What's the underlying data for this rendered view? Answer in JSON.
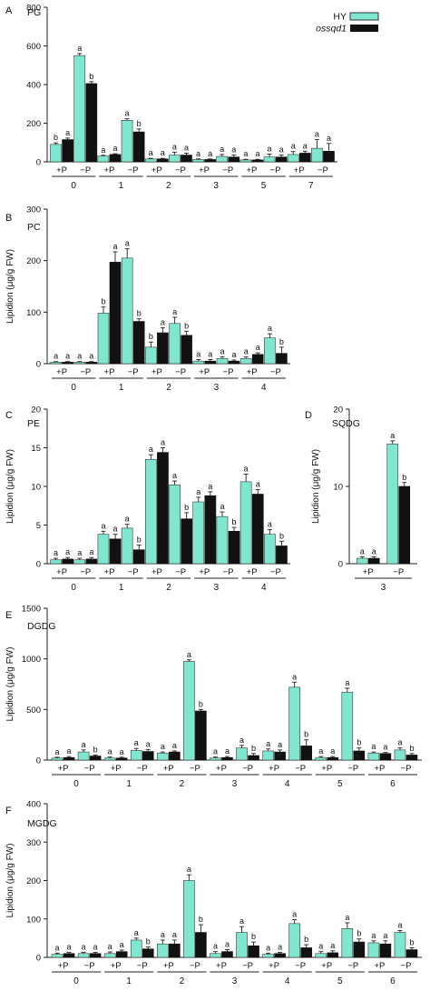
{
  "legend": {
    "hy_label": "HY",
    "mutant_label": "ossqd1",
    "hy_color": "#7fe6d0",
    "mutant_color": "#111111"
  },
  "chart_data": [
    {
      "panel": "A",
      "title": "PG",
      "type": "bar",
      "ylabel": "",
      "ylim": [
        0,
        800
      ],
      "yticks": [
        0,
        200,
        400,
        600,
        800
      ],
      "categories": [
        "+P",
        "−P",
        "+P",
        "−P",
        "+P",
        "−P",
        "+P",
        "−P",
        "+P",
        "−P",
        "+P",
        "−P"
      ],
      "groups": [
        "0",
        "1",
        "2",
        "3",
        "5",
        "7"
      ],
      "series": [
        {
          "name": "HY",
          "values": [
            90,
            550,
            30,
            215,
            15,
            35,
            12,
            28,
            10,
            25,
            38,
            70
          ],
          "errors": [
            8,
            10,
            4,
            8,
            3,
            15,
            3,
            10,
            3,
            15,
            15,
            45
          ],
          "letters": [
            "b",
            "a",
            "a",
            "a",
            "a",
            "a",
            "a",
            "a",
            "a",
            "a",
            "a",
            "a"
          ]
        },
        {
          "name": "ossqd1",
          "values": [
            115,
            405,
            38,
            155,
            15,
            35,
            12,
            25,
            10,
            25,
            45,
            55
          ],
          "errors": [
            8,
            10,
            4,
            15,
            3,
            10,
            3,
            10,
            3,
            10,
            10,
            40
          ],
          "letters": [
            "a",
            "b",
            "a",
            "b",
            "a",
            "a",
            "a",
            "a",
            "a",
            "a",
            "a",
            "a"
          ]
        }
      ]
    },
    {
      "panel": "B",
      "title": "PC",
      "type": "bar",
      "ylabel": "Lipidion (μg/g FW)",
      "ylim": [
        0,
        300
      ],
      "yticks": [
        0,
        100,
        200,
        300
      ],
      "categories": [
        "+P",
        "−P",
        "+P",
        "−P",
        "+P",
        "−P",
        "+P",
        "−P",
        "+P",
        "−P"
      ],
      "groups": [
        "0",
        "1",
        "2",
        "3",
        "4"
      ],
      "series": [
        {
          "name": "HY",
          "values": [
            3,
            3,
            98,
            205,
            32,
            78,
            5,
            10,
            10,
            50
          ],
          "errors": [
            1,
            1,
            12,
            18,
            10,
            12,
            3,
            3,
            3,
            8
          ],
          "letters": [
            "a",
            "a",
            "b",
            "a",
            "b",
            "a",
            "a",
            "a",
            "a",
            "a"
          ]
        },
        {
          "name": "ossqd1",
          "values": [
            3,
            3,
            197,
            82,
            60,
            55,
            5,
            5,
            18,
            20
          ],
          "errors": [
            1,
            1,
            20,
            5,
            10,
            8,
            3,
            2,
            3,
            12
          ],
          "letters": [
            "a",
            "a",
            "a",
            "b",
            "a",
            "b",
            "a",
            "a",
            "a",
            "b"
          ]
        }
      ]
    },
    {
      "panel": "C",
      "title": "PE",
      "type": "bar",
      "ylabel": "Lipidion (μg/g FW)",
      "ylim": [
        0,
        20
      ],
      "yticks": [
        0,
        5,
        10,
        15,
        20
      ],
      "categories": [
        "+P",
        "−P",
        "+P",
        "−P",
        "+P",
        "−P",
        "+P",
        "−P",
        "+P",
        "−P"
      ],
      "groups": [
        "0",
        "1",
        "2",
        "3",
        "4"
      ],
      "series": [
        {
          "name": "HY",
          "values": [
            0.5,
            0.5,
            3.8,
            4.6,
            13.5,
            10.2,
            8.0,
            6.1,
            10.6,
            3.8
          ],
          "errors": [
            0.2,
            0.2,
            0.4,
            0.5,
            0.6,
            0.5,
            0.6,
            0.6,
            1.0,
            0.6
          ],
          "letters": [
            "a",
            "a",
            "a",
            "a",
            "a",
            "a",
            "a",
            "a",
            "a",
            "a"
          ]
        },
        {
          "name": "ossqd1",
          "values": [
            0.6,
            0.6,
            3.2,
            1.8,
            14.4,
            5.8,
            8.8,
            4.2,
            9.0,
            2.3
          ],
          "errors": [
            0.2,
            0.2,
            0.6,
            0.6,
            0.6,
            0.8,
            0.5,
            0.5,
            0.6,
            0.6
          ],
          "letters": [
            "a",
            "a",
            "a",
            "b",
            "a",
            "b",
            "a",
            "b",
            "a",
            "b"
          ]
        }
      ]
    },
    {
      "panel": "D",
      "title": "SQDG",
      "type": "bar",
      "ylabel": "Lipidion (μg/g FW)",
      "ylim": [
        0,
        20
      ],
      "yticks": [
        0,
        10,
        20
      ],
      "categories": [
        "+P",
        "−P"
      ],
      "groups": [
        "3"
      ],
      "series": [
        {
          "name": "HY",
          "values": [
            0.7,
            15.5
          ],
          "errors": [
            0.2,
            0.4
          ],
          "letters": [
            "a",
            "a"
          ]
        },
        {
          "name": "ossqd1",
          "values": [
            0.7,
            10.0
          ],
          "errors": [
            0.2,
            0.5
          ],
          "letters": [
            "a",
            "b"
          ]
        }
      ]
    },
    {
      "panel": "E",
      "title": "DGDG",
      "type": "bar",
      "ylabel": "Lipidion (μg/g FW)",
      "ylim": [
        0,
        1500
      ],
      "yticks": [
        0,
        500,
        1000,
        1500
      ],
      "categories": [
        "+P",
        "−P",
        "+P",
        "−P",
        "+P",
        "−P",
        "+P",
        "−P",
        "+P",
        "−P",
        "+P",
        "−P",
        "+P",
        "−P"
      ],
      "groups": [
        "0",
        "1",
        "2",
        "3",
        "4",
        "5",
        "6"
      ],
      "series": [
        {
          "name": "HY",
          "values": [
            20,
            80,
            20,
            95,
            70,
            975,
            20,
            120,
            90,
            720,
            25,
            670,
            70,
            100
          ],
          "errors": [
            8,
            20,
            10,
            20,
            10,
            15,
            10,
            25,
            20,
            50,
            10,
            40,
            10,
            20
          ],
          "letters": [
            "a",
            "a",
            "a",
            "a",
            "a",
            "a",
            "a",
            "a",
            "a",
            "a",
            "a",
            "a",
            "a",
            "a"
          ]
        },
        {
          "name": "ossqd1",
          "values": [
            25,
            40,
            20,
            85,
            80,
            485,
            25,
            45,
            80,
            140,
            25,
            90,
            65,
            50
          ],
          "errors": [
            10,
            10,
            8,
            20,
            10,
            15,
            10,
            20,
            20,
            60,
            10,
            30,
            10,
            15
          ],
          "letters": [
            "a",
            "b",
            "a",
            "a",
            "a",
            "b",
            "a",
            "b",
            "a",
            "b",
            "a",
            "b",
            "a",
            "b"
          ]
        }
      ]
    },
    {
      "panel": "F",
      "title": "MGDG",
      "type": "bar",
      "ylabel": "Lipidion (μg/g FW)",
      "ylim": [
        0,
        400
      ],
      "yticks": [
        0,
        100,
        200,
        300,
        400
      ],
      "categories": [
        "+P",
        "−P",
        "+P",
        "−P",
        "+P",
        "−P",
        "+P",
        "−P",
        "+P",
        "−P",
        "+P",
        "−P",
        "+P",
        "−P"
      ],
      "groups": [
        "0",
        "1",
        "2",
        "3",
        "4",
        "5",
        "6"
      ],
      "series": [
        {
          "name": "HY",
          "values": [
            8,
            10,
            10,
            45,
            35,
            200,
            10,
            65,
            8,
            88,
            10,
            75,
            38,
            65
          ],
          "errors": [
            3,
            3,
            4,
            5,
            10,
            15,
            5,
            15,
            3,
            10,
            5,
            15,
            5,
            5
          ],
          "letters": [
            "a",
            "a",
            "a",
            "a",
            "a",
            "a",
            "a",
            "a",
            "a",
            "a",
            "a",
            "a",
            "a",
            "a"
          ]
        },
        {
          "name": "ossqd1",
          "values": [
            10,
            10,
            15,
            22,
            35,
            65,
            15,
            30,
            10,
            25,
            12,
            40,
            35,
            20
          ],
          "errors": [
            3,
            3,
            4,
            5,
            10,
            20,
            5,
            10,
            3,
            8,
            5,
            8,
            8,
            5
          ],
          "letters": [
            "a",
            "a",
            "a",
            "b",
            "a",
            "b",
            "a",
            "b",
            "a",
            "b",
            "a",
            "b",
            "a",
            "b"
          ]
        }
      ]
    }
  ]
}
